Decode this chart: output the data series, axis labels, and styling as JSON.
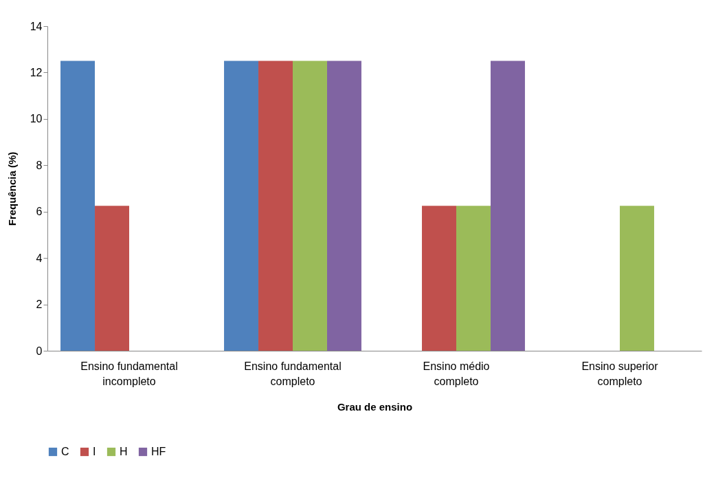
{
  "chart_data": {
    "type": "bar",
    "xlabel": "Grau de ensino",
    "ylabel": "Frequência (%)",
    "categories": [
      "Ensino fundamental incompleto",
      "Ensino fundamental completo",
      "Ensino médio completo",
      "Ensino superior completo"
    ],
    "series": [
      {
        "name": "C",
        "color": "#4f81bd",
        "values": [
          12.5,
          12.5,
          0,
          0
        ]
      },
      {
        "name": "I",
        "color": "#c0504d",
        "values": [
          6.25,
          12.5,
          6.25,
          0
        ]
      },
      {
        "name": "H",
        "color": "#9bbb59",
        "values": [
          0,
          12.5,
          6.25,
          6.25
        ]
      },
      {
        "name": "HF",
        "color": "#8064a2",
        "values": [
          0,
          12.5,
          12.5,
          0
        ]
      }
    ],
    "ylim": [
      0,
      14
    ],
    "yticks": [
      0,
      2,
      4,
      6,
      8,
      10,
      12,
      14
    ],
    "grid": false,
    "legend": "bottom"
  }
}
